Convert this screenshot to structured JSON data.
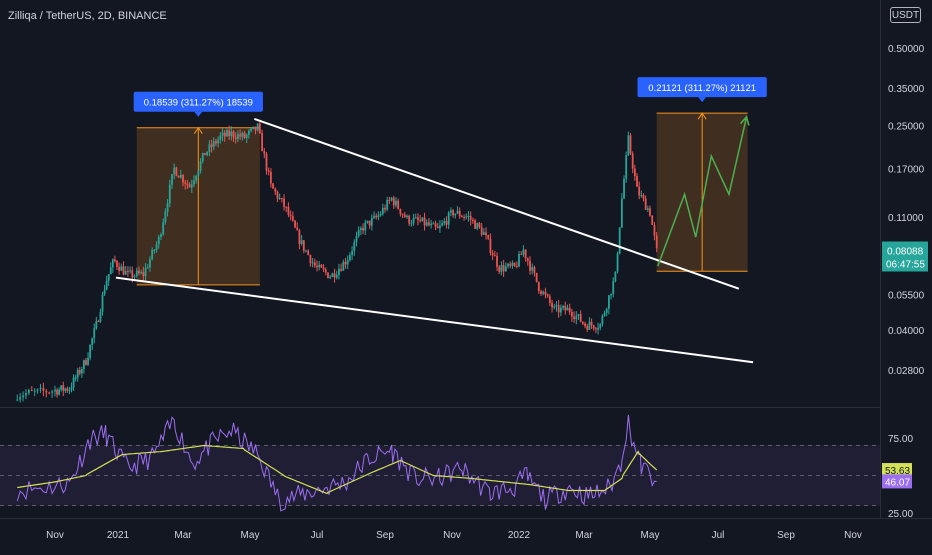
{
  "header": {
    "title": "Zilliqa / TetherUS, 2D, BINANCE",
    "currency": "USDT"
  },
  "colors": {
    "background": "#131722",
    "up": "#26a69a",
    "down": "#ef5350",
    "trendline": "#ffffff",
    "target_box": "#f7931a",
    "label_bg": "#2962ff",
    "rsi": "#9c6ef0",
    "rsi_ma": "#d4e157",
    "projection": "#4caf50"
  },
  "chart_data": [
    {
      "type": "candlestick",
      "title": "Zilliqa / TetherUS, 2D, BINANCE",
      "y_scale": "log",
      "ylim": [
        0.0245,
        0.78
      ],
      "y_ticks": [
        "0.50000",
        "0.35000",
        "0.25000",
        "0.17000",
        "0.11000",
        "0.05500",
        "0.04000",
        "0.02800"
      ],
      "x_ticks": [
        "Nov",
        "2021",
        "Mar",
        "May",
        "Jul",
        "Sep",
        "Nov",
        "2022",
        "Mar",
        "May",
        "Jul",
        "Sep",
        "Nov"
      ],
      "last_price": "0.08088",
      "countdown": "06:47:55",
      "price_path": [
        [
          "2020-10-06",
          0.0225
        ],
        [
          "2020-11-15",
          0.0238
        ],
        [
          "2020-12-01",
          0.0305
        ],
        [
          "2020-12-12",
          0.0432
        ],
        [
          "2020-12-20",
          0.0615
        ],
        [
          "2020-12-28",
          0.0745
        ],
        [
          "2021-01-10",
          0.0655
        ],
        [
          "2021-01-24",
          0.066
        ],
        [
          "2021-02-07",
          0.09
        ],
        [
          "2021-02-21",
          0.17
        ],
        [
          "2021-03-07",
          0.145
        ],
        [
          "2021-03-21",
          0.195
        ],
        [
          "2021-04-04",
          0.225
        ],
        [
          "2021-04-14",
          0.232
        ],
        [
          "2021-04-26",
          0.225
        ],
        [
          "2021-05-08",
          0.245
        ],
        [
          "2021-05-20",
          0.145
        ],
        [
          "2021-06-02",
          0.12
        ],
        [
          "2021-06-16",
          0.088
        ],
        [
          "2021-06-30",
          0.07
        ],
        [
          "2021-07-14",
          0.065
        ],
        [
          "2021-07-28",
          0.075
        ],
        [
          "2021-08-11",
          0.1
        ],
        [
          "2021-08-25",
          0.11
        ],
        [
          "2021-09-07",
          0.13
        ],
        [
          "2021-09-21",
          0.108
        ],
        [
          "2021-10-05",
          0.105
        ],
        [
          "2021-10-19",
          0.098
        ],
        [
          "2021-11-02",
          0.115
        ],
        [
          "2021-11-16",
          0.11
        ],
        [
          "2021-11-30",
          0.095
        ],
        [
          "2021-12-14",
          0.07
        ],
        [
          "2021-12-28",
          0.07
        ],
        [
          "2022-01-05",
          0.082
        ],
        [
          "2022-01-19",
          0.059
        ],
        [
          "2022-02-02",
          0.048
        ],
        [
          "2022-02-16",
          0.048
        ],
        [
          "2022-03-02",
          0.042
        ],
        [
          "2022-03-16",
          0.042
        ],
        [
          "2022-03-30",
          0.065
        ],
        [
          "2022-04-05",
          0.13
        ],
        [
          "2022-04-11",
          0.22
        ],
        [
          "2022-04-19",
          0.14
        ],
        [
          "2022-05-01",
          0.115
        ],
        [
          "2022-05-07",
          0.0809
        ]
      ],
      "trendlines": [
        {
          "name": "upper",
          "from": [
            "2021-05-05",
            0.265
          ],
          "to": [
            "2022-07-20",
            0.058
          ]
        },
        {
          "name": "lower",
          "from": [
            "2020-12-30",
            0.064
          ],
          "to": [
            "2022-08-02",
            0.03
          ]
        }
      ],
      "measure_boxes": [
        {
          "label": "0.18539 (311.27%) 18539",
          "from": "2021-01-18",
          "to": "2021-05-10",
          "low": 0.06,
          "high": 0.245
        },
        {
          "label": "0.21121 (311.27%) 21121",
          "from": "2022-05-07",
          "to": "2022-07-28",
          "low": 0.0678,
          "high": 0.279
        }
      ],
      "projection_path": [
        [
          "2022-05-08",
          0.071
        ],
        [
          "2022-06-01",
          0.135
        ],
        [
          "2022-06-11",
          0.092
        ],
        [
          "2022-06-25",
          0.19
        ],
        [
          "2022-07-11",
          0.135
        ],
        [
          "2022-07-27",
          0.27
        ]
      ]
    },
    {
      "type": "line",
      "title": "",
      "ylim": [
        25,
        100
      ],
      "y_ticks": [
        "75.00",
        "25.00"
      ],
      "bands": [
        70,
        50,
        30
      ],
      "series": [
        {
          "name": "",
          "color": "#9c6ef0",
          "values": [
            [
              "2020-10-06",
              40
            ],
            [
              "2020-11-15",
              45
            ],
            [
              "2020-12-05",
              74
            ],
            [
              "2020-12-20",
              78
            ],
            [
              "2021-01-10",
              55
            ],
            [
              "2021-02-01",
              62
            ],
            [
              "2021-02-21",
              87
            ],
            [
              "2021-03-10",
              58
            ],
            [
              "2021-03-28",
              72
            ],
            [
              "2021-04-14",
              80
            ],
            [
              "2021-05-08",
              64
            ],
            [
              "2021-05-28",
              33
            ],
            [
              "2021-06-20",
              38
            ],
            [
              "2021-07-10",
              42
            ],
            [
              "2021-07-28",
              46
            ],
            [
              "2021-08-15",
              60
            ],
            [
              "2021-09-07",
              67
            ],
            [
              "2021-09-28",
              48
            ],
            [
              "2021-10-20",
              48
            ],
            [
              "2021-11-10",
              55
            ],
            [
              "2021-12-05",
              38
            ],
            [
              "2021-12-28",
              42
            ],
            [
              "2022-01-08",
              50
            ],
            [
              "2022-01-25",
              34
            ],
            [
              "2022-02-16",
              42
            ],
            [
              "2022-03-05",
              36
            ],
            [
              "2022-03-25",
              42
            ],
            [
              "2022-04-04",
              58
            ],
            [
              "2022-04-11",
              86
            ],
            [
              "2022-04-22",
              58
            ],
            [
              "2022-05-01",
              50
            ],
            [
              "2022-05-07",
              46.07
            ]
          ]
        },
        {
          "name": "",
          "color": "#d4e157",
          "values": [
            [
              "2020-10-06",
              42
            ],
            [
              "2020-12-01",
              50
            ],
            [
              "2021-01-05",
              64
            ],
            [
              "2021-02-10",
              66
            ],
            [
              "2021-03-20",
              70
            ],
            [
              "2021-04-25",
              68
            ],
            [
              "2021-06-01",
              50
            ],
            [
              "2021-07-10",
              38
            ],
            [
              "2021-08-20",
              52
            ],
            [
              "2021-09-15",
              60
            ],
            [
              "2021-10-15",
              50
            ],
            [
              "2021-11-20",
              48
            ],
            [
              "2022-01-10",
              44
            ],
            [
              "2022-02-15",
              40
            ],
            [
              "2022-03-20",
              40
            ],
            [
              "2022-04-05",
              48
            ],
            [
              "2022-04-20",
              66
            ],
            [
              "2022-05-07",
              53.63
            ]
          ]
        }
      ],
      "last_values": [
        "53.63",
        "46.07"
      ]
    }
  ]
}
